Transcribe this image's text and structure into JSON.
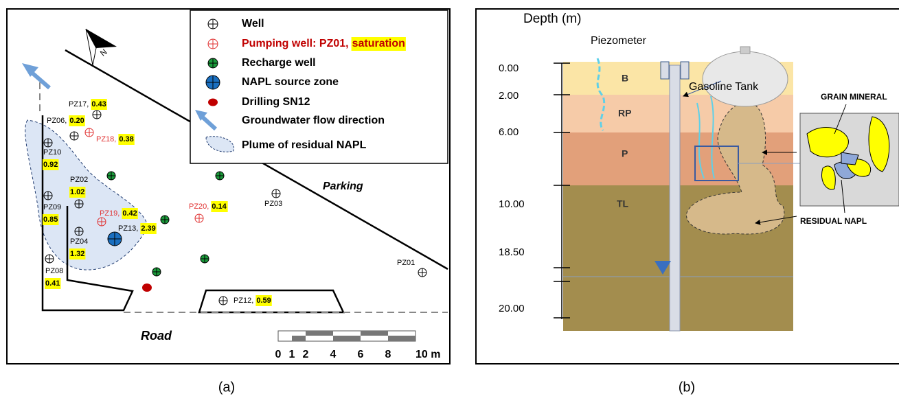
{
  "panel_a": {
    "legend": {
      "well": "Well",
      "pumping_well": "Pumping well: PZ01,",
      "saturation": "saturation",
      "recharge_well": "Recharge well",
      "napl_source": "NAPL source zone",
      "drilling": "Drilling SN12",
      "flow": "Groundwater flow direction",
      "plume": "Plume of residual NAPL"
    },
    "north": "N",
    "parking": "Parking",
    "road": "Road",
    "scale_labels": [
      "0",
      "1",
      "2",
      "4",
      "6",
      "8",
      "10 m"
    ],
    "wells": [
      {
        "label": "PZ17,",
        "saturation": "0.43"
      },
      {
        "label": "PZ06,",
        "saturation": "0.20"
      },
      {
        "label": "PZ18,",
        "saturation": "0.38"
      },
      {
        "label": "PZ10",
        "saturation": "0.92"
      },
      {
        "label": "PZ02",
        "saturation": "1.02"
      },
      {
        "label": "PZ09",
        "saturation": "0.85"
      },
      {
        "label": "PZ19,",
        "saturation": "0.42"
      },
      {
        "label": "PZ13,",
        "saturation": "2.39"
      },
      {
        "label": "PZ04",
        "saturation": "1.32"
      },
      {
        "label": "PZ08",
        "saturation": "0.41"
      },
      {
        "label": "PZ20,",
        "saturation": "0.14"
      },
      {
        "label": "PZ03"
      },
      {
        "label": "PZ01"
      },
      {
        "label": "PZ12,",
        "saturation": "0.59"
      }
    ],
    "caption": "(a)"
  },
  "panel_b": {
    "depth_title": "Depth (m)",
    "piezometer": "Piezometer",
    "depths": [
      "0.00",
      "2.00",
      "6.00",
      "10.00",
      "18.50",
      "20.00"
    ],
    "layers": [
      "B",
      "RP",
      "P",
      "TL"
    ],
    "tank": "Gasoline Tank",
    "grain_mineral": "GRAIN MINERAL",
    "residual_napl": "RESIDUAL NAPL",
    "caption": "(b)"
  }
}
